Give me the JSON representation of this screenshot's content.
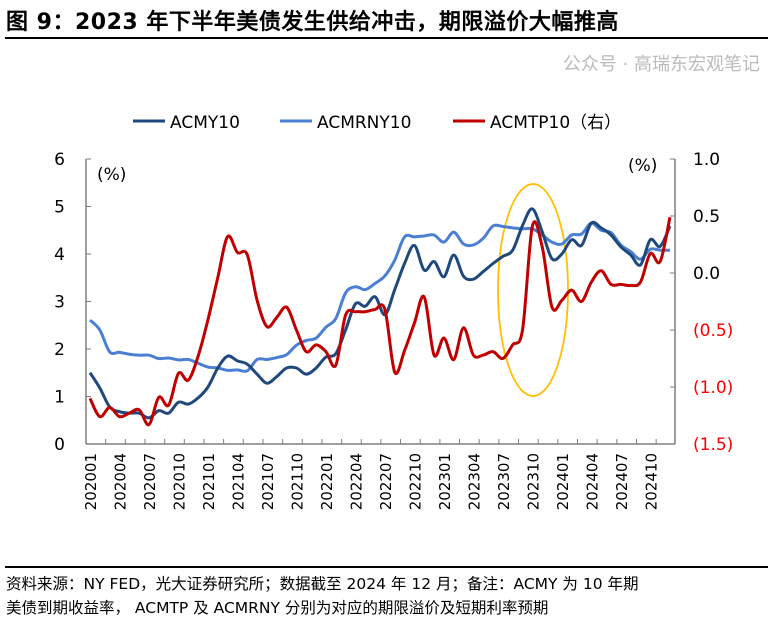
{
  "title": "图 9：2023 年下半年美债发生供给冲击，期限溢价大幅推高",
  "footer": {
    "line1": "资料来源：NY FED，光大证券研究所；数据截至 2024 年 12 月；备注：ACMY 为 10 年期",
    "line2": "美债到期收益率，  ACMTP 及  ACMRNY 分别为对应的期限溢价及短期利率预期"
  },
  "watermark": "公众号 · 高瑞东宏观笔记",
  "chart_data": {
    "type": "line",
    "left_unit": "(%)",
    "right_unit": "(%)",
    "ylim_left": [
      0,
      6
    ],
    "yticks_left": [
      "0",
      "1",
      "2",
      "3",
      "4",
      "5",
      "6"
    ],
    "ylim_right": [
      -1.5,
      1.0
    ],
    "yticks_right": [
      "(1.5)",
      "(1.0)",
      "(0.5)",
      "0.0",
      "0.5",
      "1.0"
    ],
    "xtick_labels": [
      "202001",
      "202004",
      "202007",
      "202010",
      "202101",
      "202104",
      "202107",
      "202110",
      "202201",
      "202204",
      "202207",
      "202210",
      "202301",
      "202304",
      "202307",
      "202310",
      "202401",
      "202404",
      "202407",
      "202410"
    ],
    "x_start": "2020-01",
    "x_end": "2024-12",
    "legend_position": "top",
    "colors": {
      "ACMY10": "#1f497d",
      "ACMRNY10": "#4a7fd4",
      "ACMTP10": "#c00000",
      "highlight": "#ffc000",
      "right_axis_negative": "#ff0000"
    },
    "annotation": "highlight ellipse around 2023H2",
    "series": [
      {
        "name": "ACMY10",
        "axis": "left",
        "values": [
          1.5,
          1.18,
          0.78,
          0.68,
          0.65,
          0.65,
          0.55,
          0.7,
          0.65,
          0.88,
          0.84,
          0.97,
          1.2,
          1.6,
          1.85,
          1.75,
          1.68,
          1.47,
          1.28,
          1.42,
          1.6,
          1.6,
          1.47,
          1.6,
          1.83,
          1.9,
          2.4,
          2.95,
          2.9,
          3.1,
          2.72,
          3.25,
          3.8,
          4.18,
          3.66,
          3.84,
          3.52,
          3.98,
          3.53,
          3.47,
          3.63,
          3.8,
          3.95,
          4.08,
          4.6,
          4.95,
          4.47,
          3.9,
          4.0,
          4.3,
          4.18,
          4.65,
          4.55,
          4.4,
          4.15,
          3.98,
          3.77,
          4.3,
          4.16,
          4.59
        ]
      },
      {
        "name": "ACMRNY10",
        "axis": "left",
        "values": [
          2.61,
          2.4,
          1.94,
          1.93,
          1.89,
          1.87,
          1.87,
          1.8,
          1.81,
          1.77,
          1.78,
          1.7,
          1.62,
          1.6,
          1.55,
          1.56,
          1.54,
          1.78,
          1.78,
          1.82,
          1.88,
          2.08,
          2.18,
          2.23,
          2.46,
          2.64,
          3.18,
          3.31,
          3.25,
          3.38,
          3.54,
          3.87,
          4.36,
          4.36,
          4.38,
          4.4,
          4.25,
          4.46,
          4.21,
          4.19,
          4.33,
          4.59,
          4.58,
          4.55,
          4.53,
          4.53,
          4.4,
          4.25,
          4.21,
          4.4,
          4.42,
          4.65,
          4.5,
          4.45,
          4.19,
          4.05,
          3.89,
          4.1,
          4.08,
          4.08
        ]
      },
      {
        "name": "ACMTP10（右）",
        "axis": "right",
        "values": [
          -1.1,
          -1.26,
          -1.18,
          -1.26,
          -1.23,
          -1.2,
          -1.33,
          -1.09,
          -1.16,
          -0.88,
          -0.94,
          -0.73,
          -0.41,
          -0.04,
          0.32,
          0.18,
          0.16,
          -0.24,
          -0.47,
          -0.39,
          -0.3,
          -0.5,
          -0.69,
          -0.63,
          -0.69,
          -0.81,
          -0.37,
          -0.34,
          -0.34,
          -0.32,
          -0.32,
          -0.87,
          -0.68,
          -0.44,
          -0.21,
          -0.72,
          -0.57,
          -0.76,
          -0.48,
          -0.72,
          -0.72,
          -0.69,
          -0.75,
          -0.63,
          -0.5,
          0.41,
          0.23,
          -0.3,
          -0.24,
          -0.15,
          -0.25,
          -0.08,
          0.02,
          -0.1,
          -0.1,
          -0.11,
          -0.08,
          0.17,
          0.1,
          0.49
        ]
      }
    ]
  }
}
